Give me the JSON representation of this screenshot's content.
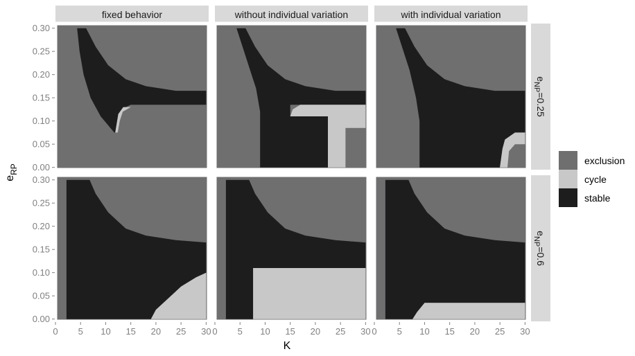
{
  "chart_data": {
    "type": "heatmap",
    "xlabel": "K",
    "ylabel": {
      "main": "e",
      "sub": "RP"
    },
    "x_ticks": [
      "0",
      "5",
      "10",
      "15",
      "20",
      "25",
      "30"
    ],
    "y_ticks": [
      "0.00",
      "0.05",
      "0.10",
      "0.15",
      "0.20",
      "0.25",
      "0.30"
    ],
    "xlim": [
      0,
      30.5
    ],
    "ylim": [
      -0.005,
      0.31
    ],
    "columns": [
      "fixed behavior",
      "without individual variation",
      "with individual variation"
    ],
    "rows": [
      {
        "main": "e",
        "sub": "NP",
        "value": "=0.25"
      },
      {
        "main": "e",
        "sub": "NP",
        "value": "=0.6"
      }
    ],
    "legend": [
      {
        "label": "exclusion",
        "color": "#6f6f70"
      },
      {
        "label": "cycle",
        "color": "#c8c8c8"
      },
      {
        "label": "stable",
        "color": "#1d1d1d"
      }
    ],
    "panel_background": "#6f6f70",
    "panels": [
      {
        "row": 0,
        "col": 0,
        "stable_boundary": {
          "left": [
            [
              4.3,
              0.3
            ],
            [
              4.8,
              0.25
            ],
            [
              5.6,
              0.2
            ],
            [
              7.0,
              0.15
            ],
            [
              9.0,
              0.11
            ],
            [
              11.7,
              0.075
            ]
          ],
          "right": [
            [
              6.1,
              0.3
            ],
            [
              8.0,
              0.26
            ],
            [
              10.5,
              0.22
            ],
            [
              14.0,
              0.19
            ],
            [
              18.0,
              0.175
            ],
            [
              24.0,
              0.165
            ],
            [
              30.0,
              0.165
            ]
          ],
          "bottom": [
            [
              30.0,
              0.135
            ],
            [
              15.0,
              0.135
            ],
            [
              14.0,
              0.13
            ],
            [
              13.0,
              0.12
            ],
            [
              12.3,
              0.09
            ],
            [
              11.9,
              0.075
            ]
          ]
        },
        "cycle_regions": [
          [
            [
              11.9,
              0.075
            ],
            [
              12.4,
              0.075
            ],
            [
              12.8,
              0.1
            ],
            [
              13.4,
              0.12
            ],
            [
              15.0,
              0.13
            ],
            [
              13.5,
              0.13
            ],
            [
              12.5,
              0.115
            ]
          ]
        ]
      },
      {
        "row": 0,
        "col": 1,
        "stable_boundary": {
          "left": [
            [
              4.3,
              0.3
            ],
            [
              5.5,
              0.26
            ],
            [
              7.0,
              0.21
            ],
            [
              8.2,
              0.17
            ],
            [
              9.0,
              0.12
            ],
            [
              9.0,
              0.0
            ]
          ],
          "right": [
            [
              6.1,
              0.3
            ],
            [
              8.0,
              0.26
            ],
            [
              10.5,
              0.22
            ],
            [
              14.0,
              0.19
            ],
            [
              18.0,
              0.175
            ],
            [
              24.0,
              0.165
            ],
            [
              30.0,
              0.165
            ]
          ],
          "bottom": [
            [
              30.0,
              0.135
            ],
            [
              15.0,
              0.135
            ],
            [
              15.0,
              0.11
            ],
            [
              22.5,
              0.11
            ],
            [
              22.5,
              0.0
            ],
            [
              9.0,
              0.0
            ]
          ]
        },
        "cycle_regions": [
          [
            [
              15.0,
              0.11
            ],
            [
              15.5,
              0.125
            ],
            [
              17.0,
              0.135
            ],
            [
              30.0,
              0.135
            ],
            [
              30.0,
              0.085
            ],
            [
              26.0,
              0.085
            ],
            [
              26.0,
              0.0
            ],
            [
              22.5,
              0.0
            ],
            [
              22.5,
              0.11
            ]
          ]
        ]
      },
      {
        "row": 0,
        "col": 2,
        "stable_boundary": {
          "left": [
            [
              4.3,
              0.3
            ],
            [
              5.5,
              0.26
            ],
            [
              7.0,
              0.21
            ],
            [
              8.3,
              0.15
            ],
            [
              9.0,
              0.1
            ],
            [
              9.0,
              0.0
            ]
          ],
          "right": [
            [
              6.1,
              0.3
            ],
            [
              8.0,
              0.26
            ],
            [
              10.5,
              0.22
            ],
            [
              14.0,
              0.19
            ],
            [
              18.0,
              0.175
            ],
            [
              24.0,
              0.165
            ],
            [
              30.0,
              0.165
            ]
          ],
          "bottom": [
            [
              30.0,
              0.075
            ],
            [
              28.0,
              0.075
            ],
            [
              26.0,
              0.06
            ],
            [
              25.5,
              0.04
            ],
            [
              25.0,
              0.0
            ],
            [
              9.0,
              0.0
            ]
          ]
        },
        "cycle_regions": [
          [
            [
              25.0,
              0.0
            ],
            [
              25.5,
              0.04
            ],
            [
              26.0,
              0.06
            ],
            [
              28.0,
              0.075
            ],
            [
              30.0,
              0.075
            ],
            [
              30.0,
              0.05
            ],
            [
              28.0,
              0.05
            ],
            [
              26.8,
              0.035
            ],
            [
              26.5,
              0.0
            ]
          ]
        ]
      },
      {
        "row": 1,
        "col": 0,
        "stable_boundary": {
          "left": [
            [
              2.2,
              0.3
            ],
            [
              2.2,
              0.0
            ]
          ],
          "right": [
            [
              6.8,
              0.3
            ],
            [
              8.0,
              0.27
            ],
            [
              10.5,
              0.23
            ],
            [
              14.0,
              0.195
            ],
            [
              18.0,
              0.18
            ],
            [
              24.0,
              0.17
            ],
            [
              30.0,
              0.165
            ]
          ],
          "bottom": [
            [
              30.0,
              0.1
            ],
            [
              28.0,
              0.09
            ],
            [
              25.0,
              0.07
            ],
            [
              22.0,
              0.04
            ],
            [
              20.0,
              0.02
            ],
            [
              19.0,
              0.0
            ],
            [
              2.2,
              0.0
            ]
          ]
        },
        "cycle_regions": [
          [
            [
              19.0,
              0.0
            ],
            [
              20.0,
              0.02
            ],
            [
              22.0,
              0.04
            ],
            [
              25.0,
              0.07
            ],
            [
              28.0,
              0.09
            ],
            [
              30.0,
              0.1
            ],
            [
              30.0,
              0.0
            ]
          ]
        ]
      },
      {
        "row": 1,
        "col": 1,
        "stable_boundary": {
          "left": [
            [
              2.2,
              0.3
            ],
            [
              2.2,
              0.0
            ]
          ],
          "right": [
            [
              6.8,
              0.3
            ],
            [
              8.0,
              0.27
            ],
            [
              10.5,
              0.23
            ],
            [
              14.0,
              0.195
            ],
            [
              18.0,
              0.18
            ],
            [
              24.0,
              0.17
            ],
            [
              30.0,
              0.165
            ]
          ],
          "bottom": [
            [
              30.0,
              0.11
            ],
            [
              7.6,
              0.11
            ],
            [
              7.6,
              0.0
            ],
            [
              2.2,
              0.0
            ]
          ]
        },
        "cycle_regions": [
          [
            [
              7.6,
              0.0
            ],
            [
              7.6,
              0.11
            ],
            [
              30.0,
              0.11
            ],
            [
              30.0,
              0.0
            ]
          ]
        ]
      },
      {
        "row": 1,
        "col": 2,
        "stable_boundary": {
          "left": [
            [
              2.2,
              0.3
            ],
            [
              2.2,
              0.0
            ]
          ],
          "right": [
            [
              6.8,
              0.3
            ],
            [
              8.0,
              0.27
            ],
            [
              10.5,
              0.23
            ],
            [
              14.0,
              0.195
            ],
            [
              18.0,
              0.18
            ],
            [
              24.0,
              0.17
            ],
            [
              30.0,
              0.165
            ]
          ],
          "bottom": [
            [
              30.0,
              0.035
            ],
            [
              10.0,
              0.035
            ],
            [
              8.5,
              0.015
            ],
            [
              7.6,
              0.0
            ],
            [
              2.2,
              0.0
            ]
          ]
        },
        "cycle_regions": [
          [
            [
              7.6,
              0.0
            ],
            [
              8.5,
              0.015
            ],
            [
              10.0,
              0.035
            ],
            [
              30.0,
              0.035
            ],
            [
              30.0,
              0.0
            ]
          ]
        ]
      }
    ]
  }
}
